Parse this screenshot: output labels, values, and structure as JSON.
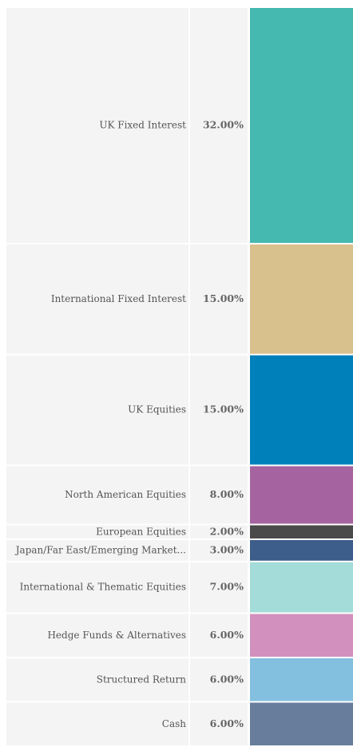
{
  "chart_data": {
    "type": "stacked-column",
    "categories": [
      "UK Fixed Interest",
      "International Fixed Interest",
      "UK Equities",
      "North American Equities",
      "European Equities",
      "Japan/Far East/Emerging Market...",
      "International & Thematic Equities",
      "Hedge Funds & Alternatives",
      "Structured Return",
      "Cash"
    ],
    "values": [
      32,
      15,
      15,
      8,
      2,
      3,
      7,
      6,
      6,
      6
    ],
    "value_labels": [
      "32.00%",
      "15.00%",
      "15.00%",
      "8.00%",
      "2.00%",
      "3.00%",
      "7.00%",
      "6.00%",
      "6.00%",
      "6.00%"
    ],
    "colors": [
      "#45b8b0",
      "#d9c18e",
      "#0080bb",
      "#a5649f",
      "#4a4a4a",
      "#3d5d8a",
      "#a3dcd8",
      "#d190be",
      "#83bfdf",
      "#677d9b"
    ]
  }
}
